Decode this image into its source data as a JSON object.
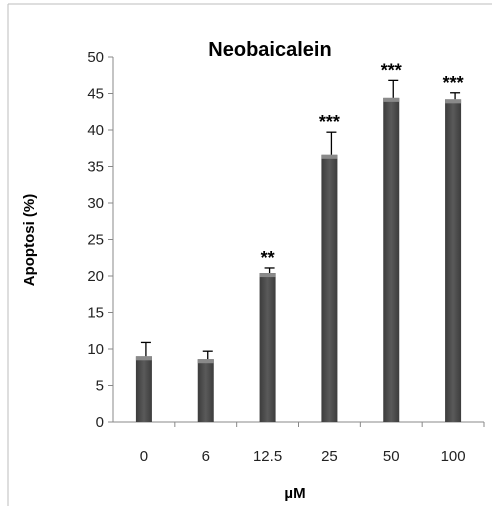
{
  "chart_data": {
    "type": "bar",
    "title": "Neobaicalein",
    "xlabel": "µM",
    "ylabel": "Apoptosi (%)",
    "categories": [
      "0",
      "6",
      "12.5",
      "25",
      "50",
      "100"
    ],
    "values": [
      9.0,
      8.6,
      20.4,
      36.6,
      44.4,
      44.2
    ],
    "errors": [
      1.9,
      1.1,
      0.7,
      3.1,
      2.4,
      0.9
    ],
    "significance": [
      "",
      "",
      "**",
      "***",
      "***",
      "***"
    ],
    "ylim": [
      0,
      50
    ],
    "yticks": [
      0,
      5,
      10,
      15,
      20,
      25,
      30,
      35,
      40,
      45,
      50
    ],
    "grid": false,
    "legend": "none",
    "bar_color": "#5a5a5a"
  }
}
